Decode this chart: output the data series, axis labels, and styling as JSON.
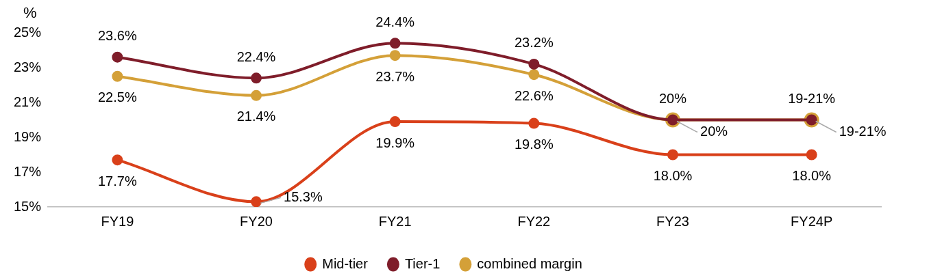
{
  "chart_data": {
    "type": "line",
    "ylabel": "%",
    "categories": [
      "FY19",
      "FY20",
      "FY21",
      "FY22",
      "FY23",
      "FY24P"
    ],
    "series": [
      {
        "name": "combined margin",
        "color": "#d4a038",
        "values": [
          22.5,
          21.4,
          23.7,
          22.6,
          20,
          20
        ],
        "value_labels": [
          "22.5%",
          "21.4%",
          "23.7%",
          "22.6%",
          "20%",
          null
        ]
      },
      {
        "name": "Tier-1",
        "color": "#7f1d2a",
        "values": [
          23.6,
          22.4,
          24.4,
          23.2,
          20,
          20
        ],
        "value_labels": [
          "23.6%",
          "22.4%",
          "24.4%",
          "23.2%",
          "20%",
          null
        ]
      },
      {
        "name": "Mid-tier",
        "color": "#d9401a",
        "values": [
          17.7,
          15.3,
          19.9,
          19.8,
          18.0,
          18.0
        ],
        "value_labels": [
          "17.7%",
          "15.3%",
          "19.9%",
          "19.8%",
          "18.0%",
          "18.0%"
        ]
      }
    ],
    "annotations": [
      {
        "text": "19-21%",
        "x": "FY24P",
        "y": 20
      },
      {
        "text": "19-21%",
        "x": "FY24P",
        "y": 20
      }
    ],
    "ylim": [
      15,
      25
    ],
    "yticks": [
      {
        "value": 15,
        "label": "15%"
      },
      {
        "value": 17,
        "label": "17%"
      },
      {
        "value": 19,
        "label": "19%"
      },
      {
        "value": 21,
        "label": "21%"
      },
      {
        "value": 23,
        "label": "23%"
      },
      {
        "value": 25,
        "label": "25%"
      }
    ],
    "grid": false,
    "legend": "bottom",
    "marker": "circle",
    "line_style": "solid"
  }
}
